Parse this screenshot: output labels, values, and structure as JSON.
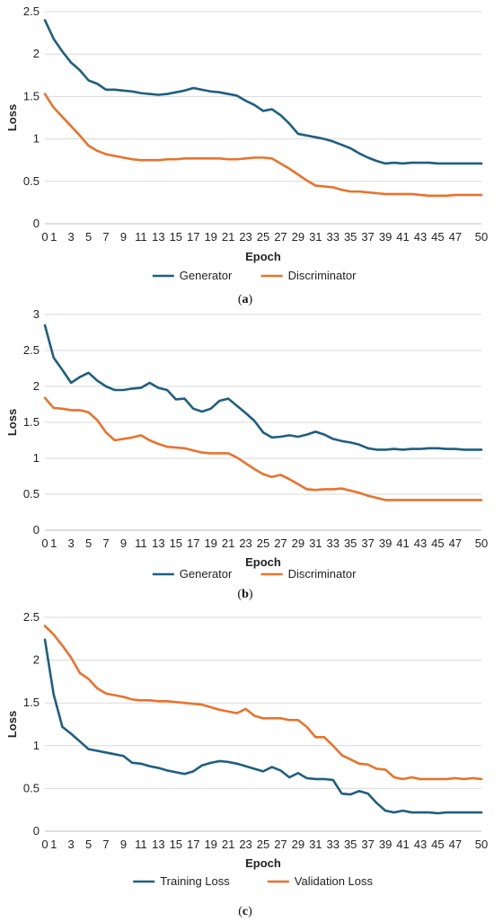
{
  "chart_data": [
    {
      "type": "line",
      "caption_letter": "a",
      "xlabel": "Epoch",
      "ylabel": "Loss",
      "ylim": [
        0,
        2.5
      ],
      "yticks": [
        "0",
        "0.5",
        "1",
        "1.5",
        "2",
        "2.5"
      ],
      "xlim": [
        0,
        50
      ],
      "xticks": [
        "0",
        "1",
        "3",
        "5",
        "7",
        "9",
        "11",
        "13",
        "15",
        "17",
        "19",
        "21",
        "23",
        "25",
        "27",
        "29",
        "31",
        "33",
        "35",
        "37",
        "39",
        "41",
        "43",
        "45",
        "47",
        "50"
      ],
      "legend_position": "bottom",
      "grid": "horizontal",
      "series": [
        {
          "name": "Generator",
          "color": "#1f5f7f",
          "values": [
            2.4,
            2.18,
            2.03,
            1.9,
            1.81,
            1.69,
            1.65,
            1.58,
            1.58,
            1.57,
            1.56,
            1.54,
            1.53,
            1.52,
            1.53,
            1.55,
            1.57,
            1.6,
            1.58,
            1.56,
            1.55,
            1.53,
            1.51,
            1.45,
            1.4,
            1.33,
            1.35,
            1.28,
            1.18,
            1.06,
            1.04,
            1.02,
            1.0,
            0.97,
            0.93,
            0.89,
            0.83,
            0.78,
            0.74,
            0.71,
            0.72,
            0.71,
            0.72,
            0.72,
            0.72,
            0.71,
            0.71,
            0.71,
            0.71,
            0.71,
            0.71
          ]
        },
        {
          "name": "Discriminator",
          "color": "#e8732c",
          "values": [
            1.53,
            1.37,
            1.26,
            1.15,
            1.04,
            0.92,
            0.86,
            0.82,
            0.8,
            0.78,
            0.76,
            0.75,
            0.75,
            0.75,
            0.76,
            0.76,
            0.77,
            0.77,
            0.77,
            0.77,
            0.77,
            0.76,
            0.76,
            0.77,
            0.78,
            0.78,
            0.77,
            0.71,
            0.65,
            0.58,
            0.51,
            0.45,
            0.44,
            0.43,
            0.4,
            0.38,
            0.38,
            0.37,
            0.36,
            0.35,
            0.35,
            0.35,
            0.35,
            0.34,
            0.33,
            0.33,
            0.33,
            0.34,
            0.34,
            0.34,
            0.34
          ]
        }
      ]
    },
    {
      "type": "line",
      "caption_letter": "b",
      "xlabel": "Epoch",
      "ylabel": "Loss",
      "ylim": [
        0,
        3
      ],
      "yticks": [
        "0",
        "0.5",
        "1",
        "1.5",
        "2",
        "2.5",
        "3"
      ],
      "xlim": [
        0,
        50
      ],
      "xticks": [
        "0",
        "1",
        "3",
        "5",
        "7",
        "9",
        "11",
        "13",
        "15",
        "17",
        "19",
        "21",
        "23",
        "25",
        "27",
        "29",
        "31",
        "33",
        "35",
        "37",
        "39",
        "41",
        "43",
        "45",
        "47",
        "50"
      ],
      "legend_position": "bottom",
      "grid": "horizontal",
      "series": [
        {
          "name": "Generator",
          "color": "#1f5f7f",
          "values": [
            2.85,
            2.4,
            2.23,
            2.05,
            2.13,
            2.19,
            2.08,
            2.0,
            1.95,
            1.95,
            1.97,
            1.98,
            2.05,
            1.98,
            1.95,
            1.82,
            1.83,
            1.69,
            1.65,
            1.69,
            1.8,
            1.83,
            1.73,
            1.63,
            1.52,
            1.36,
            1.29,
            1.3,
            1.32,
            1.3,
            1.33,
            1.37,
            1.33,
            1.27,
            1.24,
            1.22,
            1.19,
            1.14,
            1.12,
            1.12,
            1.13,
            1.12,
            1.13,
            1.13,
            1.14,
            1.14,
            1.13,
            1.13,
            1.12,
            1.12,
            1.12
          ]
        },
        {
          "name": "Discriminator",
          "color": "#e8732c",
          "values": [
            1.84,
            1.7,
            1.69,
            1.67,
            1.67,
            1.64,
            1.53,
            1.36,
            1.25,
            1.27,
            1.29,
            1.32,
            1.25,
            1.2,
            1.16,
            1.15,
            1.14,
            1.11,
            1.08,
            1.07,
            1.07,
            1.07,
            1.01,
            0.93,
            0.85,
            0.78,
            0.74,
            0.77,
            0.71,
            0.64,
            0.57,
            0.56,
            0.57,
            0.57,
            0.58,
            0.55,
            0.52,
            0.48,
            0.45,
            0.42,
            0.42,
            0.42,
            0.42,
            0.42,
            0.42,
            0.42,
            0.42,
            0.42,
            0.42,
            0.42,
            0.42
          ]
        }
      ]
    },
    {
      "type": "line",
      "caption_letter": "c",
      "xlabel": "Epoch",
      "ylabel": "Loss",
      "ylim": [
        0,
        2.5
      ],
      "yticks": [
        "0",
        "0.5",
        "1",
        "1.5",
        "2",
        "2.5"
      ],
      "xlim": [
        0,
        50
      ],
      "xticks": [
        "0",
        "1",
        "3",
        "5",
        "7",
        "9",
        "11",
        "13",
        "15",
        "17",
        "19",
        "21",
        "23",
        "25",
        "27",
        "29",
        "31",
        "33",
        "35",
        "37",
        "39",
        "41",
        "43",
        "45",
        "47",
        "50"
      ],
      "legend_position": "bottom",
      "grid": "horizontal",
      "series": [
        {
          "name": "Training Loss",
          "color": "#1f5f7f",
          "values": [
            2.24,
            1.6,
            1.22,
            1.14,
            1.05,
            0.96,
            0.94,
            0.92,
            0.9,
            0.88,
            0.8,
            0.79,
            0.76,
            0.74,
            0.71,
            0.69,
            0.67,
            0.7,
            0.77,
            0.8,
            0.82,
            0.81,
            0.79,
            0.76,
            0.73,
            0.7,
            0.75,
            0.71,
            0.63,
            0.68,
            0.62,
            0.61,
            0.61,
            0.6,
            0.44,
            0.43,
            0.47,
            0.44,
            0.33,
            0.24,
            0.22,
            0.24,
            0.22,
            0.22,
            0.22,
            0.21,
            0.22,
            0.22,
            0.22,
            0.22,
            0.22
          ]
        },
        {
          "name": "Validation Loss",
          "color": "#e8732c",
          "values": [
            2.4,
            2.3,
            2.17,
            2.03,
            1.85,
            1.78,
            1.67,
            1.61,
            1.59,
            1.57,
            1.54,
            1.53,
            1.53,
            1.52,
            1.52,
            1.51,
            1.5,
            1.49,
            1.48,
            1.45,
            1.42,
            1.4,
            1.38,
            1.43,
            1.35,
            1.32,
            1.32,
            1.32,
            1.3,
            1.3,
            1.22,
            1.1,
            1.1,
            1.0,
            0.89,
            0.84,
            0.79,
            0.78,
            0.73,
            0.72,
            0.63,
            0.61,
            0.63,
            0.61,
            0.61,
            0.61,
            0.61,
            0.62,
            0.61,
            0.62,
            0.61
          ]
        }
      ]
    }
  ]
}
